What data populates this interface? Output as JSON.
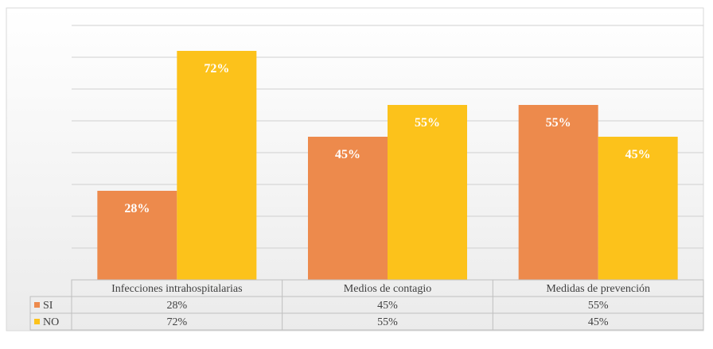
{
  "chart_data": {
    "type": "bar",
    "categories": [
      "Infecciones intrahospitalarias",
      "Medios de contagio",
      "Medidas de prevención"
    ],
    "series": [
      {
        "name": "SI",
        "values": [
          28,
          45,
          55
        ],
        "color": "#ED8A4C"
      },
      {
        "name": "NO",
        "values": [
          72,
          55,
          45
        ],
        "color": "#FCC21B"
      }
    ],
    "ylim": [
      0,
      80
    ],
    "unit": "%",
    "grid": true,
    "legend": "data-table"
  },
  "colors": {
    "background": "#F2F2F2",
    "grid": "#D0D0D0",
    "table_border": "#BFBFBF",
    "label_text": "#FFFFFF",
    "table_text": "#404040"
  }
}
